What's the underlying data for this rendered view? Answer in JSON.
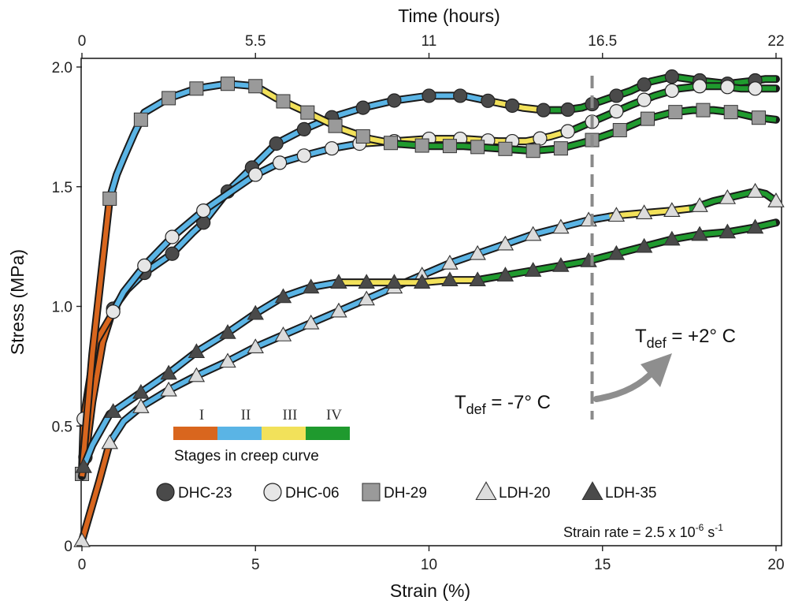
{
  "chart_data": {
    "type": "line",
    "xlabel": "Strain (%)",
    "ylabel": "Stress (MPa)",
    "top_axis_label": "Time (hours)",
    "xlim": [
      0,
      20
    ],
    "ylim": [
      0,
      2.0
    ],
    "x_ticks": [
      "0",
      "5",
      "10",
      "15",
      "20"
    ],
    "y_ticks": [
      "0",
      "0.5",
      "1.0",
      "1.5",
      "2.0"
    ],
    "top_ticks": [
      "0",
      "5.5",
      "11",
      "16.5",
      "22"
    ],
    "grid": false,
    "legend_position": "bottom-center",
    "stages_legend": {
      "title": "Stages in creep curve",
      "stages": [
        {
          "label": "I",
          "color": "#d9661e"
        },
        {
          "label": "II",
          "color": "#5ab4e5"
        },
        {
          "label": "III",
          "color": "#f2e15a"
        },
        {
          "label": "IV",
          "color": "#1f9a2e"
        }
      ]
    },
    "annotations": {
      "strain_rate_text": "Strain rate = 2.5 x 10",
      "strain_rate_exp": "-6",
      "strain_rate_unit": " s",
      "strain_rate_unit_exp": "-1",
      "tdef_left_main": "T",
      "tdef_left_sub": "def",
      "tdef_left_val": " = -7° C",
      "tdef_right_main": "T",
      "tdef_right_sub": "def",
      "tdef_right_val": " = +2° C",
      "temperature_change_strain": 14.7
    },
    "series": [
      {
        "name": "DHC-23",
        "marker": "circle",
        "fill": "#4a4a4a",
        "x": [
          0,
          0.1,
          0.3,
          0.6,
          0.9,
          1.3,
          1.8,
          2.4,
          2.6,
          3.2,
          3.5,
          4.2,
          4.9,
          5.6,
          6.4,
          7.2,
          8.1,
          9.0,
          10.0,
          11.0,
          12.0,
          12.7,
          13.3,
          13.9,
          14.4,
          15.0,
          15.8,
          16.4,
          17.0,
          17.5,
          18.0,
          18.6,
          19.2,
          19.7,
          20.0
        ],
        "y": [
          0.29,
          0.37,
          0.6,
          0.85,
          0.99,
          1.07,
          1.14,
          1.2,
          1.22,
          1.31,
          1.35,
          1.48,
          1.58,
          1.68,
          1.74,
          1.79,
          1.83,
          1.86,
          1.88,
          1.88,
          1.85,
          1.83,
          1.82,
          1.82,
          1.83,
          1.86,
          1.9,
          1.94,
          1.96,
          1.95,
          1.94,
          1.93,
          1.94,
          1.95,
          1.95
        ],
        "stage_breaks": [
          1.0,
          11.5,
          13.2
        ],
        "markers_x": [
          0.1,
          0.9,
          1.8,
          2.6,
          3.5,
          4.2,
          4.9,
          5.6,
          6.4,
          7.2,
          8.1,
          9.0,
          10.0,
          10.9,
          11.7,
          12.4,
          13.3,
          14.0,
          14.7,
          15.4,
          16.2,
          17.0,
          17.8,
          18.6,
          19.4
        ]
      },
      {
        "name": "DHC-06",
        "marker": "circle",
        "fill": "#e6e6e6",
        "x": [
          0,
          0.05,
          0.4,
          0.8,
          1.2,
          1.8,
          2.6,
          3.5,
          4.2,
          5.0,
          5.7,
          6.4,
          7.2,
          8.0,
          9.0,
          10.0,
          11.0,
          12.0,
          12.8,
          13.5,
          14.2,
          15.0,
          15.8,
          16.5,
          17.2,
          17.8,
          18.4,
          19.0,
          19.6,
          20.0
        ],
        "y": [
          0.3,
          0.53,
          0.85,
          0.95,
          1.06,
          1.17,
          1.29,
          1.4,
          1.47,
          1.55,
          1.6,
          1.63,
          1.66,
          1.68,
          1.69,
          1.7,
          1.7,
          1.69,
          1.69,
          1.71,
          1.74,
          1.79,
          1.84,
          1.88,
          1.91,
          1.92,
          1.92,
          1.91,
          1.91,
          1.91
        ],
        "stage_breaks": [
          0.9,
          8.0,
          13.8
        ],
        "markers_x": [
          0.05,
          0.9,
          1.8,
          2.6,
          3.5,
          5.0,
          5.7,
          6.4,
          7.2,
          8.0,
          9.0,
          10.0,
          10.9,
          11.7,
          12.4,
          13.2,
          14.0,
          14.7,
          15.4,
          16.2,
          17.0,
          17.8,
          18.6,
          19.4
        ]
      },
      {
        "name": "DH-29",
        "marker": "square",
        "fill": "#9a9a9a",
        "x": [
          0,
          0.3,
          0.8,
          1.0,
          1.2,
          1.5,
          1.8,
          2.5,
          3.3,
          4.2,
          5.0,
          5.6,
          6.5,
          7.5,
          8.3,
          9.0,
          10.0,
          11.0,
          12.0,
          13.0,
          13.8,
          14.6,
          15.4,
          16.2,
          17.0,
          17.6,
          18.2,
          18.8,
          19.4,
          20.0
        ],
        "y": [
          0.3,
          0.8,
          1.45,
          1.55,
          1.62,
          1.72,
          1.81,
          1.87,
          1.91,
          1.93,
          1.92,
          1.87,
          1.81,
          1.74,
          1.7,
          1.68,
          1.67,
          1.67,
          1.66,
          1.65,
          1.66,
          1.69,
          1.73,
          1.78,
          1.81,
          1.82,
          1.82,
          1.81,
          1.79,
          1.78
        ],
        "stage_breaks": [
          0.8,
          5.2,
          9.0
        ],
        "markers_x": [
          0.0,
          0.8,
          1.7,
          2.5,
          3.3,
          4.2,
          5.0,
          5.8,
          6.5,
          7.3,
          8.1,
          8.9,
          9.8,
          10.6,
          11.4,
          12.2,
          13.0,
          13.8,
          14.7,
          15.5,
          16.3,
          17.1,
          17.9,
          18.7,
          19.5
        ]
      },
      {
        "name": "LDH-20",
        "marker": "triangle-up",
        "fill": "#dcdcdc",
        "x": [
          0,
          0.2,
          0.5,
          0.8,
          1.2,
          1.7,
          2.5,
          3.3,
          4.2,
          5.0,
          5.8,
          6.6,
          7.4,
          8.2,
          9.0,
          9.8,
          10.6,
          11.4,
          12.2,
          13.0,
          13.8,
          14.6,
          15.4,
          16.2,
          17.0,
          17.6,
          18.2,
          18.8,
          19.4,
          19.7,
          20.0
        ],
        "y": [
          0.02,
          0.12,
          0.27,
          0.43,
          0.52,
          0.58,
          0.65,
          0.71,
          0.77,
          0.83,
          0.88,
          0.93,
          0.98,
          1.03,
          1.08,
          1.13,
          1.18,
          1.22,
          1.26,
          1.3,
          1.33,
          1.36,
          1.38,
          1.39,
          1.4,
          1.41,
          1.44,
          1.46,
          1.48,
          1.47,
          1.44
        ],
        "stage_breaks": [
          0.8,
          15.2,
          17.5
        ],
        "markers_x": [
          0.0,
          0.8,
          1.7,
          2.5,
          3.3,
          4.2,
          5.0,
          5.8,
          6.6,
          7.4,
          8.2,
          9.0,
          9.8,
          10.6,
          11.4,
          12.2,
          13.0,
          13.8,
          14.6,
          15.4,
          16.2,
          17.0,
          17.8,
          18.6,
          19.4,
          20.0
        ]
      },
      {
        "name": "LDH-35",
        "marker": "triangle-up",
        "fill": "#4a4a4a",
        "x": [
          0,
          0.05,
          0.3,
          0.8,
          1.5,
          2.5,
          3.3,
          4.2,
          5.0,
          5.8,
          6.6,
          7.4,
          8.2,
          9.0,
          9.8,
          10.6,
          11.4,
          12.2,
          13.0,
          13.8,
          14.6,
          15.4,
          16.2,
          17.0,
          17.8,
          18.6,
          19.4,
          20.0
        ],
        "y": [
          0.29,
          0.33,
          0.42,
          0.55,
          0.62,
          0.72,
          0.81,
          0.89,
          0.97,
          1.04,
          1.08,
          1.1,
          1.1,
          1.1,
          1.1,
          1.11,
          1.11,
          1.13,
          1.15,
          1.17,
          1.19,
          1.22,
          1.25,
          1.28,
          1.3,
          1.31,
          1.33,
          1.35
        ],
        "stage_breaks": [
          0.1,
          7.5,
          11.3
        ],
        "markers_x": [
          0.05,
          0.9,
          1.7,
          2.5,
          3.3,
          4.2,
          5.0,
          5.8,
          6.6,
          7.4,
          8.2,
          9.0,
          9.8,
          10.6,
          11.4,
          12.2,
          13.0,
          13.8,
          14.6,
          15.4,
          16.2,
          17.0,
          17.8,
          18.6,
          19.4
        ]
      }
    ]
  }
}
